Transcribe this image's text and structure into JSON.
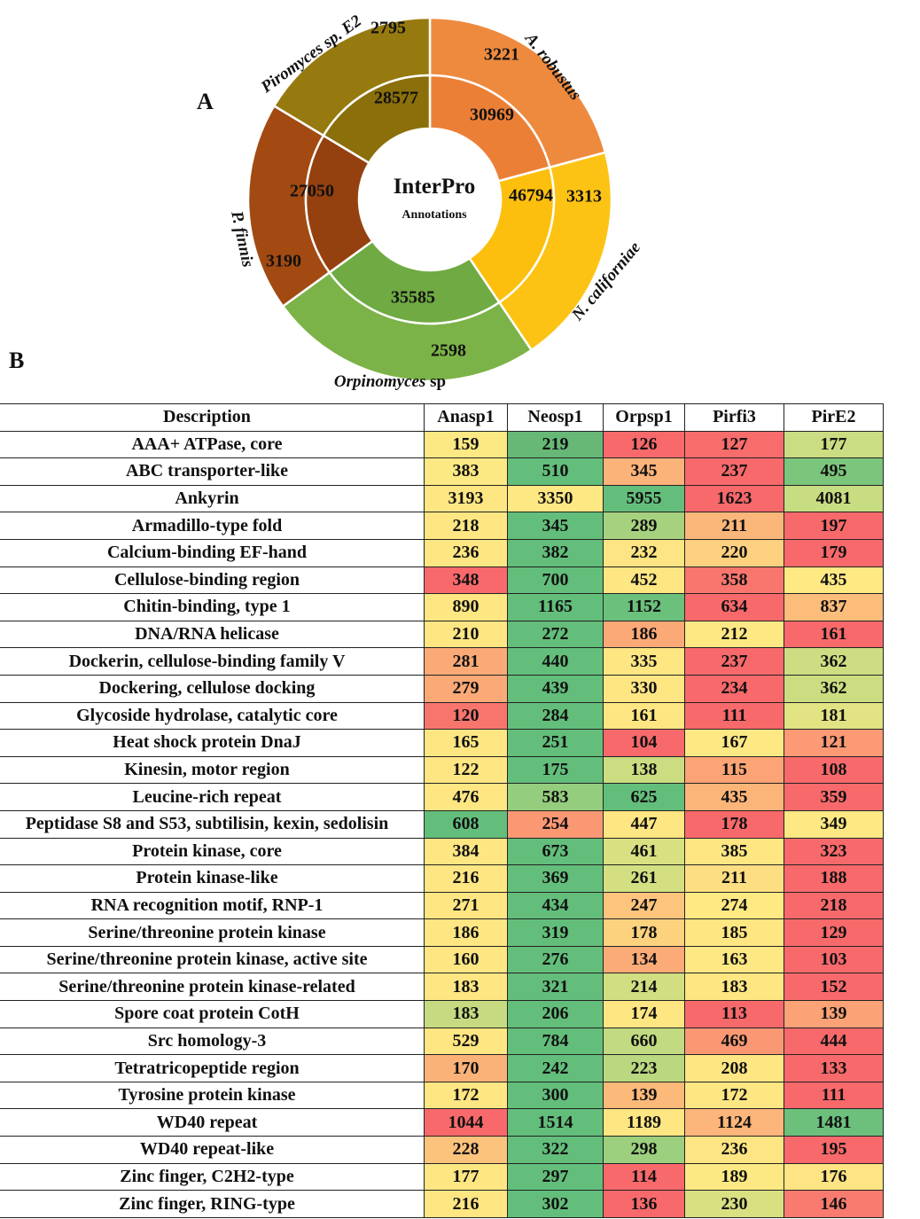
{
  "panel_a_label": "A",
  "panel_b_label": "B",
  "donut": {
    "center_title": "InterPro",
    "center_subtitle": "Annotations",
    "segments": [
      {
        "species": "A. robustus",
        "species_style": "italic",
        "outer": "3221",
        "inner": "30969",
        "outer_color": "#ee8a3e",
        "inner_color": "#ec7f36",
        "value_outer": 3221,
        "value_inner": 30969
      },
      {
        "species": "N. californiae",
        "species_style": "italic",
        "outer": "3313",
        "inner": "46794",
        "outer_color": "#fdc314",
        "inner_color": "#fdbf0e",
        "value_outer": 3313,
        "value_inner": 46794
      },
      {
        "species_italic": "Orpinomyces",
        "species_plain": " sp",
        "outer": "2598",
        "inner": "35585",
        "outer_color": "#7cb348",
        "inner_color": "#6faa42",
        "value_outer": 2598,
        "value_inner": 35585
      },
      {
        "species": "P. finnis",
        "species_style": "italic",
        "outer": "3190",
        "inner": "27050",
        "outer_color": "#a24a12",
        "inner_color": "#94410f",
        "value_outer": 3190,
        "value_inner": 27050
      },
      {
        "species": "Piromyces sp. E2",
        "species_style": "italic",
        "outer": "2795",
        "inner": "28577",
        "outer_color": "#977a0f",
        "inner_color": "#8b6f0a",
        "value_outer": 2795,
        "value_inner": 28577
      }
    ]
  },
  "chart_data": {
    "type": "heatmap",
    "columns": [
      "Description",
      "Anasp1",
      "Neosp1",
      "Orpsp1",
      "Pirfi3",
      "PirE2"
    ],
    "rows": [
      {
        "label": "AAA+ ATPase, core",
        "values": [
          159,
          219,
          126,
          127,
          177
        ],
        "colors": [
          "#fde984",
          "#67b877",
          "#f8696b",
          "#f96c6c",
          "#cbdd82"
        ]
      },
      {
        "label": "ABC transporter-like",
        "values": [
          383,
          510,
          345,
          237,
          495
        ],
        "colors": [
          "#fde984",
          "#63be7b",
          "#fcb37a",
          "#f8696b",
          "#7cc57c"
        ]
      },
      {
        "label": "Ankyrin",
        "values": [
          3193,
          3350,
          5955,
          1623,
          4081
        ],
        "colors": [
          "#fee683",
          "#fee883",
          "#63be7b",
          "#f8696b",
          "#c8dc81"
        ]
      },
      {
        "label": "Armadillo-type fold",
        "values": [
          218,
          345,
          289,
          211,
          197
        ],
        "colors": [
          "#fee683",
          "#63be7b",
          "#a6d27f",
          "#fbb67a",
          "#f8696b"
        ]
      },
      {
        "label": "Calcium-binding EF-hand",
        "values": [
          236,
          382,
          232,
          220,
          179
        ],
        "colors": [
          "#fee683",
          "#63be7b",
          "#fee583",
          "#fdd17f",
          "#f8696b"
        ]
      },
      {
        "label": "Cellulose-binding region",
        "values": [
          348,
          700,
          452,
          358,
          435
        ],
        "colors": [
          "#f8696b",
          "#63be7b",
          "#fee683",
          "#f8766d",
          "#fee983"
        ]
      },
      {
        "label": "Chitin-binding, type 1",
        "values": [
          890,
          1165,
          1152,
          634,
          837
        ],
        "colors": [
          "#fee683",
          "#63be7b",
          "#6bc07c",
          "#f8696b",
          "#fcbd7b"
        ]
      },
      {
        "label": "DNA/RNA helicase",
        "values": [
          210,
          272,
          186,
          212,
          161
        ],
        "colors": [
          "#fee683",
          "#63be7b",
          "#fba977",
          "#fee883",
          "#f8696b"
        ]
      },
      {
        "label": "Dockerin, cellulose-binding family V",
        "values": [
          281,
          440,
          335,
          237,
          362
        ],
        "colors": [
          "#fbaa77",
          "#63be7b",
          "#fee683",
          "#f8696b",
          "#cfdd82"
        ]
      },
      {
        "label": "Dockering, cellulose docking",
        "values": [
          279,
          439,
          330,
          234,
          362
        ],
        "colors": [
          "#fba977",
          "#63be7b",
          "#fee683",
          "#f8696b",
          "#cbdc81"
        ]
      },
      {
        "label": "Glycoside hydrolase, catalytic core",
        "values": [
          120,
          284,
          161,
          111,
          181
        ],
        "colors": [
          "#f8756e",
          "#63be7b",
          "#fee683",
          "#f8696b",
          "#e2e383"
        ]
      },
      {
        "label": "Heat shock protein DnaJ",
        "values": [
          165,
          251,
          104,
          167,
          121
        ],
        "colors": [
          "#fee683",
          "#63be7b",
          "#f8696b",
          "#fee884",
          "#fb9a75"
        ]
      },
      {
        "label": "Kinesin, motor region",
        "values": [
          122,
          175,
          138,
          115,
          108
        ],
        "colors": [
          "#fee683",
          "#63be7b",
          "#cbdc81",
          "#fca475",
          "#f8696b"
        ]
      },
      {
        "label": "Leucine-rich repeat",
        "values": [
          476,
          583,
          625,
          435,
          359
        ],
        "colors": [
          "#fee683",
          "#94cd7e",
          "#63be7b",
          "#fcb579",
          "#f8696b"
        ]
      },
      {
        "label": "Peptidase S8 and S53, subtilisin, kexin, sedolisin",
        "values": [
          608,
          254,
          447,
          178,
          349
        ],
        "colors": [
          "#63be7b",
          "#fb9874",
          "#fee683",
          "#f8696b",
          "#fee883"
        ]
      },
      {
        "label": "Protein kinase, core",
        "values": [
          384,
          673,
          461,
          385,
          323
        ],
        "colors": [
          "#fee683",
          "#63be7b",
          "#d9e082",
          "#fee683",
          "#f8696b"
        ]
      },
      {
        "label": "Protein kinase-like",
        "values": [
          216,
          369,
          261,
          211,
          188
        ],
        "colors": [
          "#fee683",
          "#63be7b",
          "#d4df82",
          "#fede82",
          "#f8696b"
        ]
      },
      {
        "label": "RNA recognition motif, RNP-1",
        "values": [
          271,
          434,
          247,
          274,
          218
        ],
        "colors": [
          "#fee683",
          "#63be7b",
          "#fdc47d",
          "#fee983",
          "#f8696b"
        ]
      },
      {
        "label": "Serine/threonine protein kinase",
        "values": [
          186,
          319,
          178,
          185,
          129
        ],
        "colors": [
          "#fee683",
          "#63be7b",
          "#fcd27f",
          "#fee683",
          "#f8696b"
        ]
      },
      {
        "label": "Serine/threonine protein kinase, active site",
        "values": [
          160,
          276,
          134,
          163,
          103
        ],
        "colors": [
          "#fee683",
          "#63be7b",
          "#fbab77",
          "#fee883",
          "#f8696b"
        ]
      },
      {
        "label": "Serine/threonine protein kinase-related",
        "values": [
          183,
          321,
          214,
          183,
          152
        ],
        "colors": [
          "#fee683",
          "#63be7b",
          "#d2de82",
          "#fee683",
          "#f8696b"
        ]
      },
      {
        "label": "Spore coat protein CotH",
        "values": [
          183,
          206,
          174,
          113,
          139
        ],
        "colors": [
          "#c6db81",
          "#63be7b",
          "#fee683",
          "#f8696b",
          "#fba277"
        ]
      },
      {
        "label": "Src homology-3",
        "values": [
          529,
          784,
          660,
          469,
          444
        ],
        "colors": [
          "#fee683",
          "#63be7b",
          "#c2da81",
          "#fa9874",
          "#f8696b"
        ]
      },
      {
        "label": "Tetratricopeptide region",
        "values": [
          170,
          242,
          223,
          208,
          133
        ],
        "colors": [
          "#fbb278",
          "#63be7b",
          "#bad880",
          "#fee683",
          "#f8696b"
        ]
      },
      {
        "label": "Tyrosine protein kinase",
        "values": [
          172,
          300,
          139,
          172,
          111
        ],
        "colors": [
          "#fee683",
          "#63be7b",
          "#fbb97a",
          "#fee683",
          "#f8696b"
        ]
      },
      {
        "label": "WD40 repeat",
        "values": [
          1044,
          1514,
          1189,
          1124,
          1481
        ],
        "colors": [
          "#f8696b",
          "#63be7b",
          "#fee683",
          "#fcb57a",
          "#6cc07c"
        ]
      },
      {
        "label": "WD40 repeat-like",
        "values": [
          228,
          322,
          298,
          236,
          195
        ],
        "colors": [
          "#fcc37c",
          "#63be7b",
          "#9ccf7e",
          "#fee583",
          "#f8696b"
        ]
      },
      {
        "label": "Zinc finger, C2H2-type",
        "values": [
          177,
          297,
          114,
          189,
          176
        ],
        "colors": [
          "#fee683",
          "#63be7b",
          "#f8696b",
          "#fde983",
          "#fee483"
        ]
      },
      {
        "label": "Zinc finger, RING-type",
        "values": [
          216,
          302,
          136,
          230,
          146
        ],
        "colors": [
          "#fee683",
          "#63be7b",
          "#f8696b",
          "#d9e082",
          "#f97b6f"
        ]
      }
    ]
  }
}
